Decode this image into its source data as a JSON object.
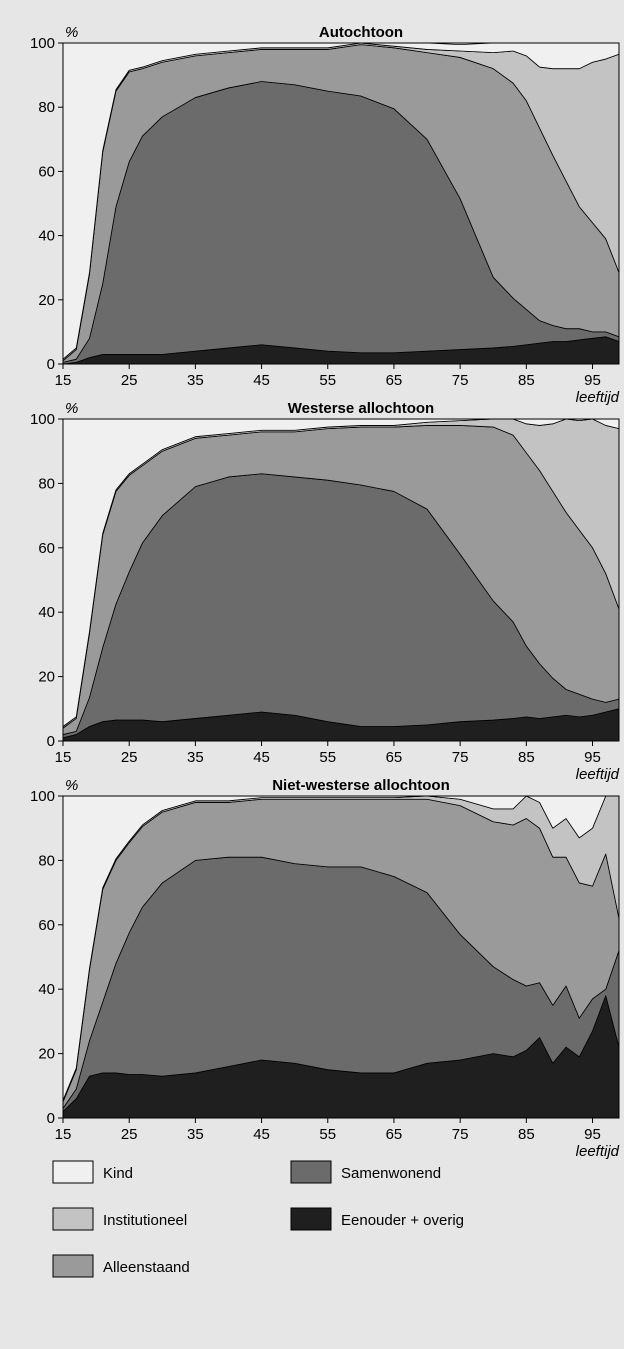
{
  "chart_data": [
    {
      "type": "area",
      "stacked": true,
      "title": "Autochtoon",
      "ylabel": "%",
      "xlabel": "leeftijd",
      "ylim": [
        0,
        100
      ],
      "xlim": [
        15,
        99
      ],
      "xticks": [
        "15",
        "25",
        "35",
        "45",
        "55",
        "65",
        "75",
        "85",
        "95"
      ],
      "yticks": [
        "0",
        "20",
        "40",
        "60",
        "80",
        "100"
      ],
      "grid": false,
      "x": [
        15,
        17,
        19,
        21,
        23,
        25,
        27,
        30,
        35,
        40,
        45,
        50,
        55,
        60,
        65,
        70,
        75,
        80,
        83,
        85,
        87,
        89,
        91,
        93,
        95,
        97,
        99
      ],
      "series": [
        {
          "name": "Eenouder + overig",
          "values": [
            0,
            0.5,
            2,
            3,
            3,
            3,
            3,
            3,
            4,
            5,
            6,
            5,
            4,
            3.5,
            3.5,
            4,
            4.5,
            5,
            5.5,
            6,
            6.5,
            7,
            7,
            7.5,
            8,
            8.5,
            7
          ]
        },
        {
          "name": "Samenwonend",
          "values": [
            0.5,
            1,
            6,
            22,
            46,
            60,
            68,
            74,
            79,
            81,
            82,
            82,
            81,
            80,
            76,
            66,
            47,
            22,
            15,
            11,
            7,
            5,
            4,
            3.5,
            2,
            1.5,
            1.5
          ]
        },
        {
          "name": "Alleenstaand",
          "values": [
            0.5,
            3,
            20,
            41,
            36,
            28,
            21,
            17,
            13,
            11,
            10,
            11,
            13,
            16,
            19,
            27,
            44,
            65,
            67,
            65,
            60,
            53,
            46,
            38,
            34,
            29,
            20
          ]
        },
        {
          "name": "Institutioneel",
          "values": [
            0.5,
            0.5,
            0.5,
            0.5,
            0.5,
            0.5,
            0.5,
            0.5,
            0.5,
            0.5,
            0.5,
            0.5,
            0.5,
            0.5,
            0.5,
            1,
            2,
            5,
            10,
            14,
            19,
            27,
            35,
            43,
            50,
            56,
            68
          ]
        },
        {
          "name": "Kind",
          "values": [
            98.5,
            95,
            71.5,
            33.5,
            14.5,
            8.5,
            7.5,
            5.5,
            3.5,
            2.5,
            1.5,
            1.5,
            1.5,
            0,
            1,
            2,
            2,
            3,
            2.5,
            4,
            7.5,
            8,
            8,
            8,
            6,
            5,
            3.5
          ]
        }
      ]
    },
    {
      "type": "area",
      "stacked": true,
      "title": "Westerse allochtoon",
      "ylabel": "%",
      "xlabel": "leeftijd",
      "ylim": [
        0,
        100
      ],
      "xlim": [
        15,
        99
      ],
      "xticks": [
        "15",
        "25",
        "35",
        "45",
        "55",
        "65",
        "75",
        "85",
        "95"
      ],
      "yticks": [
        "0",
        "20",
        "40",
        "60",
        "80",
        "100"
      ],
      "grid": false,
      "x": [
        15,
        17,
        19,
        21,
        23,
        25,
        27,
        30,
        35,
        40,
        45,
        50,
        55,
        60,
        65,
        70,
        75,
        80,
        83,
        85,
        87,
        89,
        91,
        93,
        95,
        97,
        99
      ],
      "series": [
        {
          "name": "Eenouder + overig",
          "values": [
            1,
            2,
            4.5,
            6,
            6.5,
            6.5,
            6.5,
            6,
            7,
            8,
            9,
            8,
            6,
            4.5,
            4.5,
            5,
            6,
            6.5,
            7,
            7.5,
            7,
            7.5,
            8,
            7.5,
            8,
            9,
            10
          ]
        },
        {
          "name": "Samenwonend",
          "values": [
            1,
            1,
            9,
            23,
            36,
            46,
            55,
            64,
            72,
            74,
            74,
            74,
            75,
            75,
            73,
            67,
            52,
            37,
            30,
            22,
            17,
            12,
            8,
            7,
            5,
            3,
            3
          ]
        },
        {
          "name": "Alleenstaand",
          "values": [
            2,
            4,
            20,
            35,
            35,
            30,
            24,
            20,
            15,
            13,
            13,
            14,
            16,
            18,
            20,
            26,
            40,
            54,
            58,
            60,
            60,
            58,
            55,
            51,
            47,
            40,
            28
          ]
        },
        {
          "name": "Institutioneel",
          "values": [
            0.5,
            0.5,
            0.5,
            0.5,
            0.5,
            0.5,
            0.5,
            0.5,
            0.5,
            0.5,
            0.5,
            0.5,
            0.5,
            0.5,
            0.5,
            1,
            1.5,
            3,
            6,
            9,
            14,
            21,
            29,
            34,
            40,
            46,
            56
          ]
        },
        {
          "name": "Kind",
          "values": [
            95.5,
            92.5,
            66,
            35.5,
            22,
            17,
            14,
            9.5,
            5.5,
            4.5,
            3.5,
            3.5,
            2.5,
            2,
            2,
            1,
            0.5,
            0.5,
            1,
            1.5,
            2,
            1.5,
            0,
            0.5,
            0,
            2,
            3
          ]
        }
      ]
    },
    {
      "type": "area",
      "stacked": true,
      "title": "Niet-westerse allochtoon",
      "ylabel": "%",
      "xlabel": "leeftijd",
      "ylim": [
        0,
        100
      ],
      "xlim": [
        15,
        99
      ],
      "xticks": [
        "15",
        "25",
        "35",
        "45",
        "55",
        "65",
        "75",
        "85",
        "95"
      ],
      "yticks": [
        "0",
        "20",
        "40",
        "60",
        "80",
        "100"
      ],
      "grid": false,
      "x": [
        15,
        17,
        19,
        21,
        23,
        25,
        27,
        30,
        35,
        40,
        45,
        50,
        55,
        60,
        65,
        70,
        75,
        80,
        83,
        85,
        87,
        89,
        91,
        93,
        95,
        97,
        99
      ],
      "series": [
        {
          "name": "Eenouder + overig",
          "values": [
            2,
            6,
            13,
            14,
            14,
            13.5,
            13.5,
            13,
            14,
            16,
            18,
            17,
            15,
            14,
            14,
            17,
            18,
            20,
            19,
            21,
            25,
            17,
            22,
            19,
            27,
            38,
            22
          ]
        },
        {
          "name": "Samenwonend",
          "values": [
            1,
            3,
            11,
            22,
            34,
            44,
            52,
            60,
            66,
            65,
            63,
            62,
            63,
            64,
            61,
            53,
            39,
            27,
            24,
            20,
            17,
            18,
            19,
            12,
            10,
            2,
            30
          ]
        },
        {
          "name": "Alleenstaand",
          "values": [
            2,
            6,
            22,
            35,
            32,
            28,
            25,
            22,
            18,
            17,
            18,
            20,
            21,
            21,
            24,
            29,
            40,
            45,
            48,
            52,
            48,
            46,
            40,
            42,
            35,
            42,
            10
          ]
        },
        {
          "name": "Institutioneel",
          "values": [
            0.5,
            0.5,
            0.5,
            0.5,
            0.5,
            0.5,
            0.5,
            0.5,
            0.5,
            0.5,
            0.5,
            0.5,
            0.5,
            0.5,
            0.5,
            1,
            2,
            4,
            5,
            7,
            8,
            9,
            12,
            14,
            18,
            18,
            38
          ]
        },
        {
          "name": "Kind",
          "values": [
            94.5,
            84.5,
            53.5,
            28.5,
            19.5,
            14,
            9,
            4.5,
            1.5,
            1.5,
            0.5,
            0.5,
            0.5,
            0.5,
            0.5,
            0,
            1,
            4,
            4,
            0,
            2,
            10,
            7,
            13,
            10,
            0,
            0
          ]
        }
      ]
    }
  ],
  "legend": [
    {
      "label": "Kind",
      "color": "#f0f0f0"
    },
    {
      "label": "Institutioneel",
      "color": "#c3c3c3"
    },
    {
      "label": "Alleenstaand",
      "color": "#9a9a9a"
    },
    {
      "label": "Samenwonend",
      "color": "#6b6b6b"
    },
    {
      "label": "Eenouder + overig",
      "color": "#1f1f1f"
    }
  ]
}
